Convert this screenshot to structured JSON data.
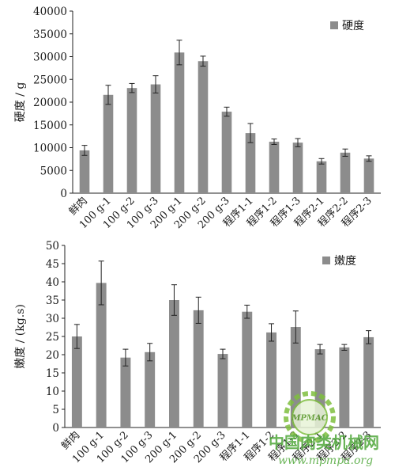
{
  "chart_data": [
    {
      "type": "bar",
      "categories": [
        "鲜肉",
        "100 g-1",
        "100 g-2",
        "100 g-3",
        "200 g-1",
        "200 g-2",
        "200 g-3",
        "程序1-1",
        "程序1-2",
        "程序1-3",
        "程序2-1",
        "程序2-2",
        "程序2-3"
      ],
      "series": [
        {
          "name": "硬度",
          "values": [
            9400,
            21600,
            23100,
            23900,
            30900,
            29000,
            17900,
            13200,
            11300,
            11100,
            7000,
            8900,
            7600
          ],
          "errors": [
            1100,
            2100,
            1000,
            1900,
            2700,
            1100,
            1000,
            2100,
            600,
            900,
            600,
            800,
            600
          ],
          "color": "#8c8c8c"
        }
      ],
      "ylabel": "硬度 / g",
      "ylim": [
        0,
        40000
      ],
      "yticks": [
        0,
        5000,
        10000,
        15000,
        20000,
        25000,
        30000,
        35000,
        40000
      ],
      "legend": "top-right",
      "grid": false
    },
    {
      "type": "bar",
      "categories": [
        "鲜肉",
        "100 g-1",
        "100 g-2",
        "100 g-3",
        "200 g-1",
        "200 g-2",
        "200 g-3",
        "程序1-1",
        "程序1-2",
        "程序1-3",
        "程序2-1",
        "程序2-2",
        "程序2-3"
      ],
      "series": [
        {
          "name": "嫩度",
          "values": [
            25.0,
            39.7,
            19.2,
            20.7,
            35.0,
            32.2,
            20.2,
            31.8,
            26.1,
            27.6,
            21.5,
            22.0,
            24.8
          ],
          "errors": [
            3.3,
            6.0,
            2.3,
            2.4,
            4.2,
            3.6,
            1.3,
            1.8,
            2.4,
            4.4,
            1.3,
            0.8,
            1.8
          ],
          "color": "#8c8c8c"
        }
      ],
      "ylabel": "嫩度 / (kg.s)",
      "ylim": [
        0,
        50
      ],
      "yticks": [
        0,
        5,
        10,
        15,
        20,
        25,
        30,
        35,
        40,
        45,
        50
      ],
      "legend": "top-right",
      "grid": false
    }
  ],
  "watermark": {
    "text_cn": "中国肉类机械网",
    "url": "www.mpmpa.org",
    "logo_text": "MPMAC"
  }
}
